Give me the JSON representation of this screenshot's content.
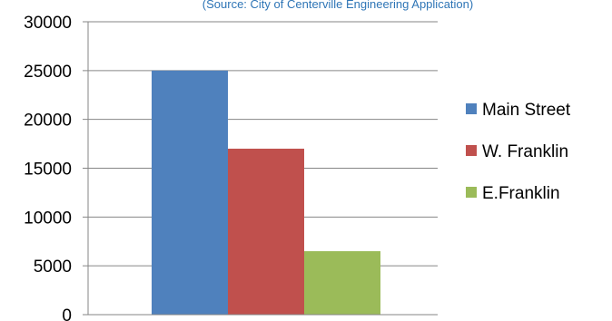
{
  "chart_data": {
    "type": "bar",
    "subtitle": "(Source: City of Centerville Engineering Application)",
    "categories": [
      ""
    ],
    "series": [
      {
        "name": "Main Street",
        "values": [
          25000
        ],
        "color": "#4f81bd"
      },
      {
        "name": "W. Franklin",
        "values": [
          17000
        ],
        "color": "#c0504d"
      },
      {
        "name": "E.Franklin",
        "values": [
          6500
        ],
        "color": "#9bbb59"
      }
    ],
    "y_ticks": [
      "0",
      "5000",
      "10000",
      "15000",
      "20000",
      "25000",
      "30000"
    ],
    "ylim": [
      0,
      30000
    ],
    "grid": true,
    "legend_position": "right"
  }
}
